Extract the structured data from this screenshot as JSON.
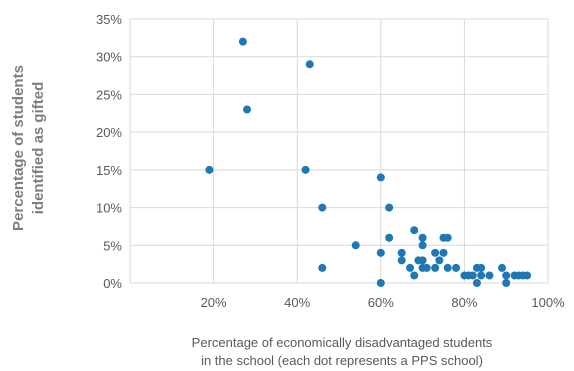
{
  "chart_data": {
    "type": "scatter",
    "ylabel_lines": [
      "Percentage of students",
      "identified as gifted"
    ],
    "xlabel_lines": [
      "Percentage of economically disadvantaged students",
      "in the school (each dot represents a PPS school)"
    ],
    "xlim": [
      0,
      100
    ],
    "ylim": [
      0,
      35
    ],
    "x_ticks": [
      20,
      40,
      60,
      80,
      100
    ],
    "y_ticks": [
      0,
      5,
      10,
      15,
      20,
      25,
      30,
      35
    ],
    "x_tick_labels": [
      "20%",
      "40%",
      "60%",
      "80%",
      "100%"
    ],
    "y_tick_labels": [
      "0%",
      "5%",
      "10%",
      "15%",
      "20%",
      "25%",
      "30%",
      "35%"
    ],
    "grid": true,
    "marker_color": "#1f77b4",
    "points": [
      {
        "x": 19,
        "y": 15
      },
      {
        "x": 27,
        "y": 32
      },
      {
        "x": 28,
        "y": 23
      },
      {
        "x": 42,
        "y": 15
      },
      {
        "x": 43,
        "y": 29
      },
      {
        "x": 46,
        "y": 10
      },
      {
        "x": 46,
        "y": 2
      },
      {
        "x": 54,
        "y": 5
      },
      {
        "x": 60,
        "y": 14
      },
      {
        "x": 60,
        "y": 4
      },
      {
        "x": 60,
        "y": 0
      },
      {
        "x": 62,
        "y": 10
      },
      {
        "x": 62,
        "y": 6
      },
      {
        "x": 65,
        "y": 4
      },
      {
        "x": 65,
        "y": 3
      },
      {
        "x": 67,
        "y": 2
      },
      {
        "x": 68,
        "y": 7
      },
      {
        "x": 68,
        "y": 1
      },
      {
        "x": 69,
        "y": 3
      },
      {
        "x": 70,
        "y": 6
      },
      {
        "x": 70,
        "y": 5
      },
      {
        "x": 70,
        "y": 3
      },
      {
        "x": 70,
        "y": 2
      },
      {
        "x": 71,
        "y": 2
      },
      {
        "x": 73,
        "y": 4
      },
      {
        "x": 73,
        "y": 2
      },
      {
        "x": 74,
        "y": 3
      },
      {
        "x": 75,
        "y": 6
      },
      {
        "x": 75,
        "y": 4
      },
      {
        "x": 76,
        "y": 6
      },
      {
        "x": 76,
        "y": 2
      },
      {
        "x": 78,
        "y": 2
      },
      {
        "x": 80,
        "y": 1
      },
      {
        "x": 81,
        "y": 1
      },
      {
        "x": 82,
        "y": 1
      },
      {
        "x": 83,
        "y": 2
      },
      {
        "x": 83,
        "y": 0
      },
      {
        "x": 84,
        "y": 2
      },
      {
        "x": 84,
        "y": 1
      },
      {
        "x": 86,
        "y": 1
      },
      {
        "x": 89,
        "y": 2
      },
      {
        "x": 90,
        "y": 1
      },
      {
        "x": 90,
        "y": 0
      },
      {
        "x": 92,
        "y": 1
      },
      {
        "x": 93,
        "y": 1
      },
      {
        "x": 94,
        "y": 1
      },
      {
        "x": 95,
        "y": 1
      }
    ]
  }
}
